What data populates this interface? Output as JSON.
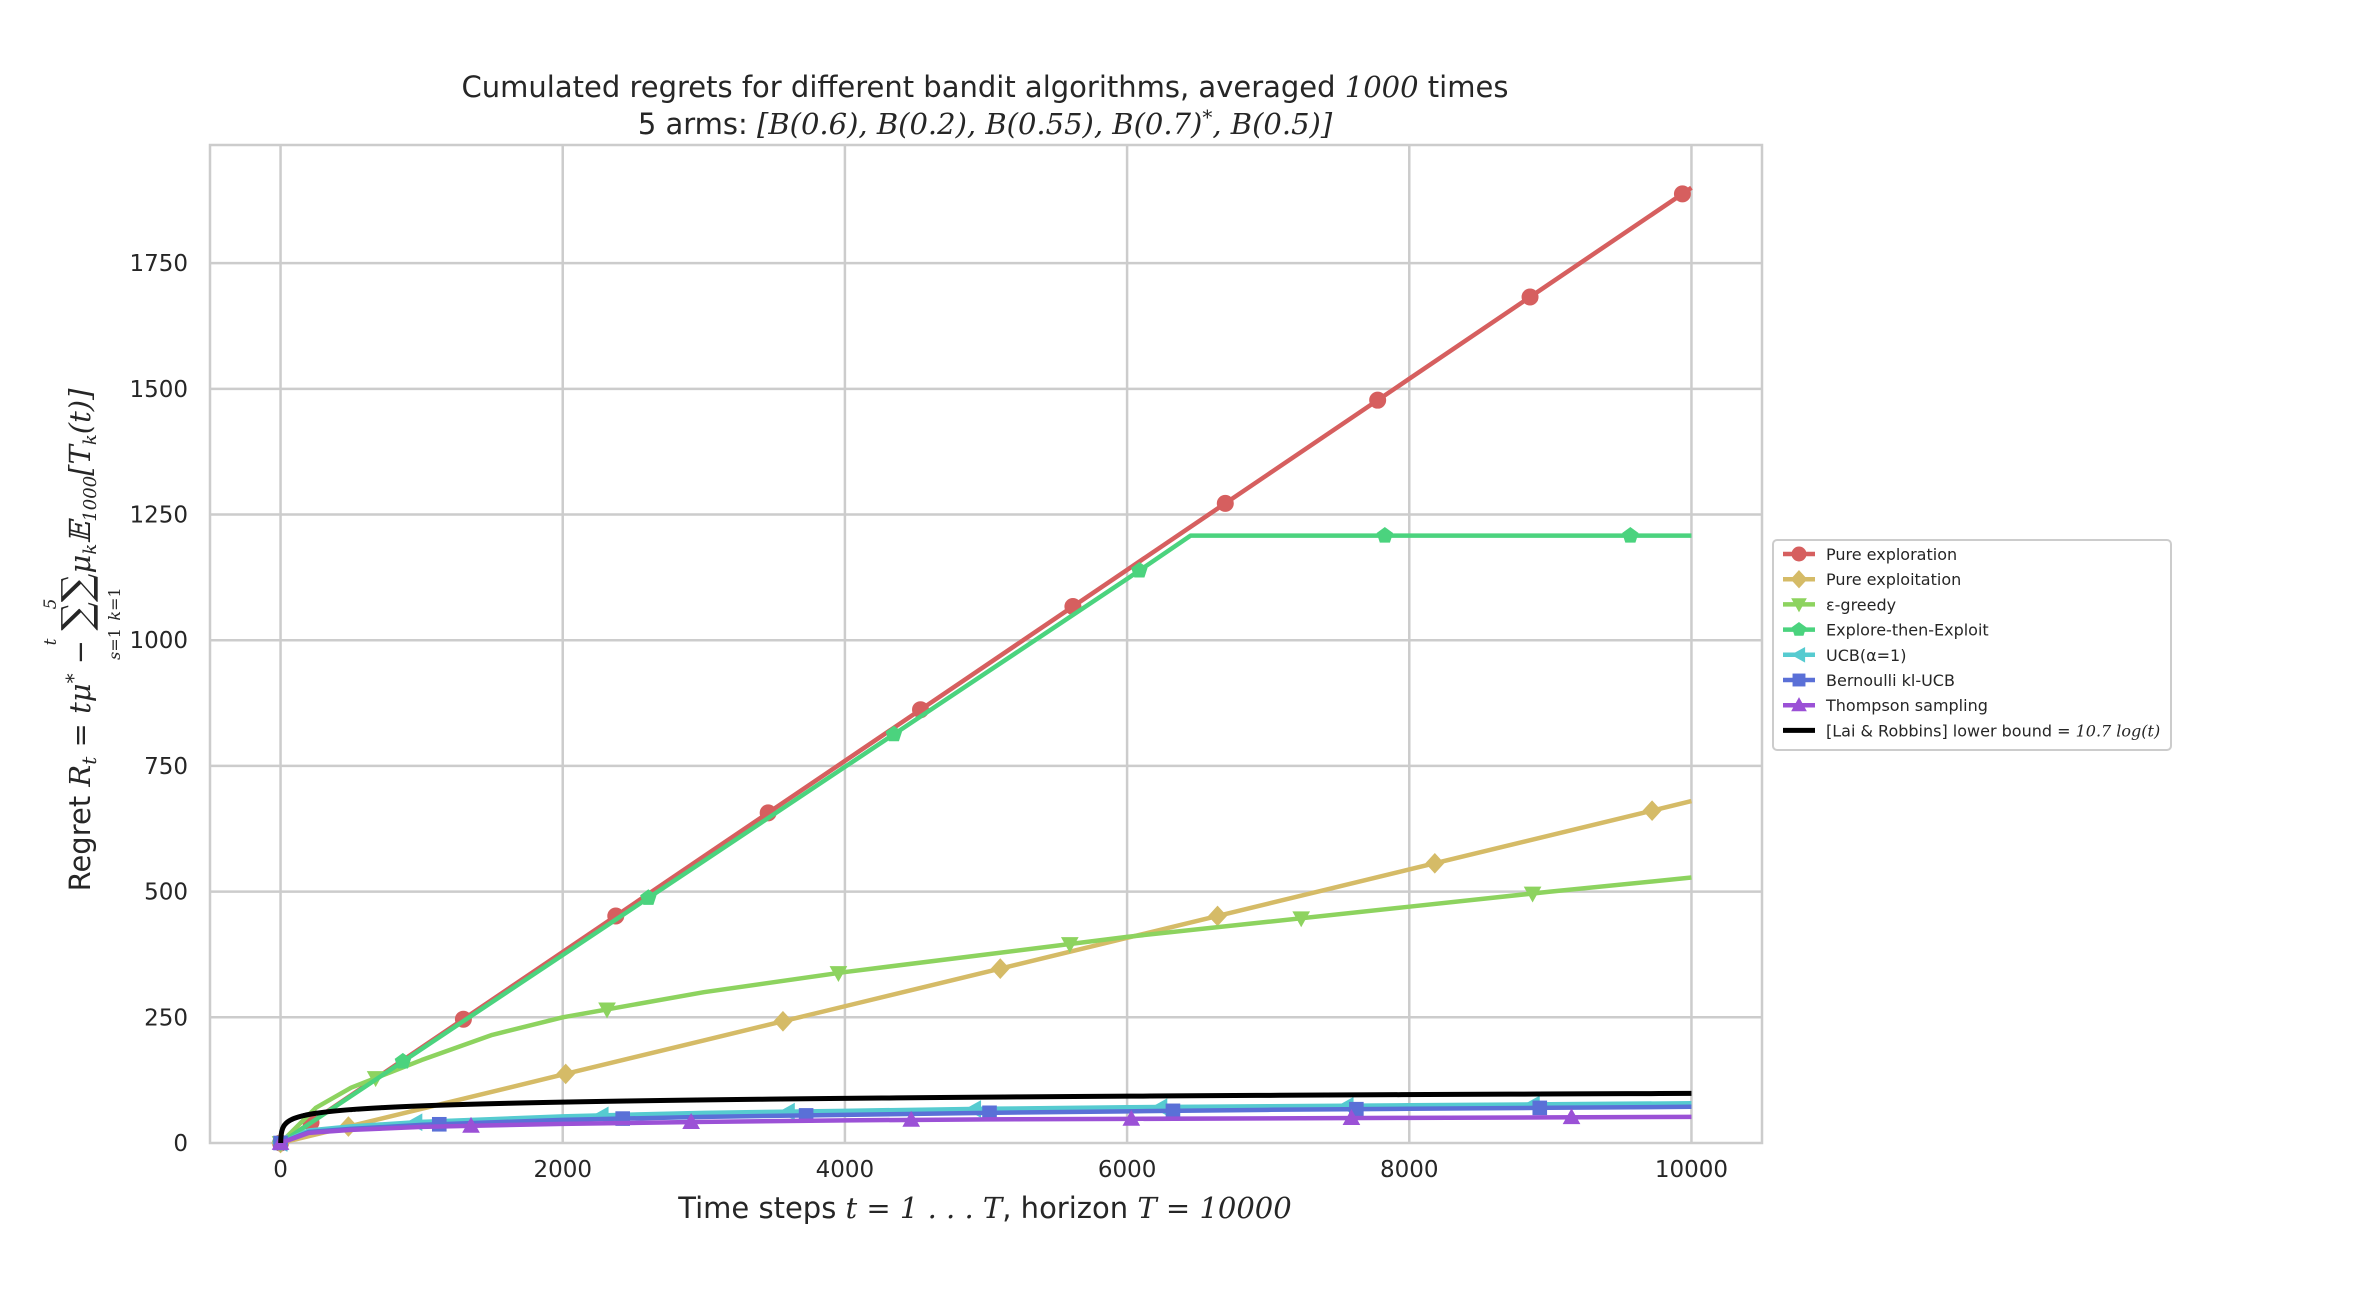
{
  "chart_data": {
    "type": "line",
    "title": "Cumulated regrets for different bandit algorithms, averaged 1000 times",
    "subtitle": "5 arms: [B(0.6), B(0.2), B(0.55), B(0.7)*, B(0.5)]",
    "xlabel": "Time steps t = 1…T, horizon T = 10000",
    "ylabel": "Regret R_t = tμ* − Σ_{s=1}^{t} Σ_{k=1}^{5} μ_k 𝔼_1000[T_k(t)]",
    "xlim": [
      -500,
      10500
    ],
    "ylim": [
      0,
      1985
    ],
    "xticks": [
      0,
      2000,
      4000,
      6000,
      8000,
      10000
    ],
    "yticks": [
      0,
      250,
      500,
      750,
      1000,
      1250,
      1500,
      1750
    ],
    "grid": true,
    "legend_position": "right, outside plot",
    "series": [
      {
        "name": "Pure exploration",
        "color": "#d65f5f",
        "marker": "circle",
        "x": [
          0,
          1000,
          2000,
          3000,
          4000,
          5000,
          6000,
          7000,
          8000,
          9000,
          10000
        ],
        "y": [
          0,
          190,
          380,
          570,
          760,
          950,
          1140,
          1330,
          1520,
          1710,
          1900
        ]
      },
      {
        "name": "Pure exploitation",
        "color": "#d5bb67",
        "marker": "diamond",
        "x": [
          0,
          1000,
          2000,
          3000,
          4000,
          5000,
          6000,
          7000,
          8000,
          9000,
          10000
        ],
        "y": [
          0,
          68,
          136,
          204,
          272,
          340,
          408,
          476,
          544,
          612,
          680
        ]
      },
      {
        "name": "ε-greedy",
        "color": "#8dd35f",
        "marker": "triangle-down",
        "x": [
          0,
          250,
          500,
          1000,
          1500,
          2000,
          3000,
          4000,
          5000,
          6000,
          7000,
          8000,
          9000,
          10000
        ],
        "y": [
          0,
          70,
          110,
          165,
          215,
          250,
          300,
          340,
          375,
          410,
          440,
          470,
          500,
          528
        ]
      },
      {
        "name": "Explore-then-Exploit",
        "color": "#4bd37e",
        "marker": "pentagon",
        "x": [
          0,
          1000,
          2000,
          3000,
          4000,
          5000,
          6000,
          6450,
          7000,
          8000,
          9000,
          10000
        ],
        "y": [
          0,
          187,
          374,
          561,
          748,
          935,
          1122,
          1208,
          1208,
          1208,
          1208,
          1208
        ]
      },
      {
        "name": "UCB(α=1)",
        "color": "#56cbd0",
        "marker": "triangle-left",
        "x": [
          0,
          200,
          500,
          1000,
          2000,
          3000,
          4000,
          5000,
          6000,
          7000,
          8000,
          9000,
          10000
        ],
        "y": [
          0,
          25,
          33,
          42,
          53,
          60,
          64,
          68,
          71,
          73,
          75,
          77,
          79
        ]
      },
      {
        "name": "Bernoulli kl-UCB",
        "color": "#5a70d7",
        "marker": "square",
        "x": [
          0,
          200,
          500,
          1000,
          2000,
          3000,
          4000,
          5000,
          6000,
          7000,
          8000,
          9000,
          10000
        ],
        "y": [
          0,
          22,
          28,
          36,
          46,
          52,
          56,
          60,
          63,
          66,
          68,
          70,
          72
        ]
      },
      {
        "name": "Thompson sampling",
        "color": "#9b51d6",
        "marker": "triangle-up",
        "x": [
          0,
          200,
          500,
          1000,
          2000,
          3000,
          4000,
          5000,
          6000,
          7000,
          8000,
          9000,
          10000
        ],
        "y": [
          0,
          20,
          26,
          32,
          38,
          42,
          45,
          47,
          48,
          49,
          50,
          51,
          52
        ]
      },
      {
        "name": "[Lai & Robbins] lower bound = 10.7 log(t)",
        "color": "#000000",
        "marker": "none",
        "x": [
          1,
          10,
          30,
          100,
          300,
          1000,
          3000,
          10000
        ],
        "y": [
          0,
          24.6,
          36.4,
          49.3,
          61.0,
          73.9,
          85.7,
          98.6
        ]
      }
    ]
  },
  "legend_formula_segment": "10.7 log(t)"
}
